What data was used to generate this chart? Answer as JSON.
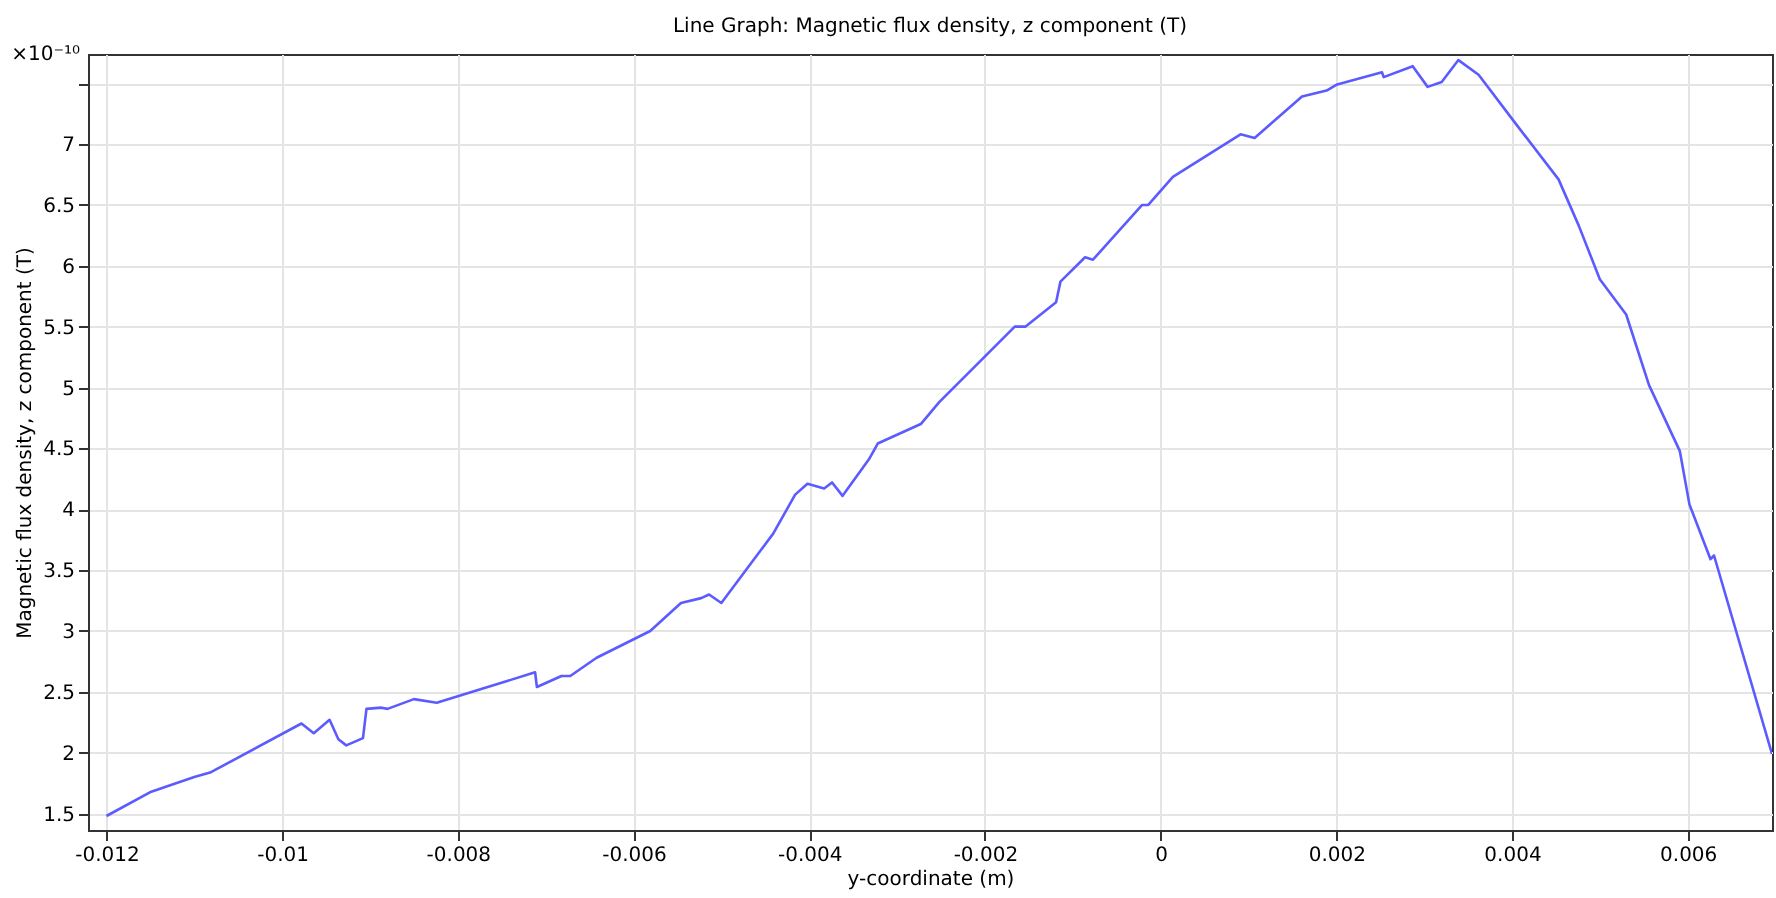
{
  "chart_data": {
    "type": "line",
    "title": "Line Graph: Magnetic flux density, z component (T)",
    "xlabel": "y-coordinate (m)",
    "ylabel": "Magnetic flux density, z component (T)",
    "annotations": [
      "×10⁻¹⁰"
    ],
    "x": [
      -0.012,
      -0.01149,
      -0.011,
      -0.01081,
      -0.00978,
      -0.00964,
      -0.00946,
      -0.00936,
      -0.00927,
      -0.00908,
      -0.00904,
      -0.00887,
      -0.0088,
      -0.0085,
      -0.00824,
      -0.00712,
      -0.0071,
      -0.00682,
      -0.00672,
      -0.00642,
      -0.00581,
      -0.00546,
      -0.00523,
      -0.00514,
      -0.005,
      -0.00441,
      -0.00416,
      -0.00402,
      -0.00383,
      -0.00374,
      -0.00362,
      -0.00332,
      -0.00322,
      -0.00273,
      -0.00252,
      -0.00166,
      -0.00154,
      -0.00119,
      -0.00114,
      -0.00086,
      -0.00077,
      -0.00021,
      -0.00014,
      0.00014,
      0.00091,
      0.00107,
      0.00161,
      0.00189,
      0.00201,
      0.00252,
      0.00254,
      0.00287,
      0.00304,
      0.0032,
      0.00339,
      0.00362,
      0.00404,
      0.00453,
      0.00476,
      0.005,
      0.0053,
      0.00556,
      0.00591,
      0.00602,
      0.00626,
      0.0063,
      0.00696
    ],
    "series": [
      {
        "color": "#5b5bff",
        "values": [
          1.48,
          1.68,
          1.8,
          1.84,
          2.24,
          2.16,
          2.27,
          2.11,
          2.06,
          2.12,
          2.36,
          2.37,
          2.36,
          2.44,
          2.41,
          2.66,
          2.54,
          2.63,
          2.63,
          2.78,
          3.0,
          3.23,
          3.27,
          3.3,
          3.23,
          3.8,
          4.12,
          4.21,
          4.17,
          4.22,
          4.11,
          4.41,
          4.54,
          4.7,
          4.88,
          5.5,
          5.5,
          5.7,
          5.87,
          6.07,
          6.05,
          6.5,
          6.5,
          6.73,
          7.08,
          7.05,
          7.39,
          7.44,
          7.49,
          7.59,
          7.55,
          7.64,
          7.47,
          7.51,
          7.69,
          7.57,
          7.17,
          6.71,
          6.33,
          5.89,
          5.6,
          5.02,
          4.48,
          4.04,
          3.59,
          3.62,
          1.99
        ]
      }
    ],
    "xlim": [
      -0.01221,
      0.00696
    ],
    "ylim": [
      1.365,
      7.74
    ],
    "xticks": [
      -0.012,
      -0.01,
      -0.008,
      -0.006,
      -0.004,
      -0.002,
      0,
      0.002,
      0.004,
      0.006
    ],
    "yticks": [
      1.5,
      2,
      2.5,
      3,
      3.5,
      4,
      4.5,
      5,
      5.5,
      6,
      6.5,
      7,
      {
        "value": 7.5,
        "label": null
      }
    ],
    "grid": true,
    "marker": "none",
    "line_style": "solid"
  }
}
